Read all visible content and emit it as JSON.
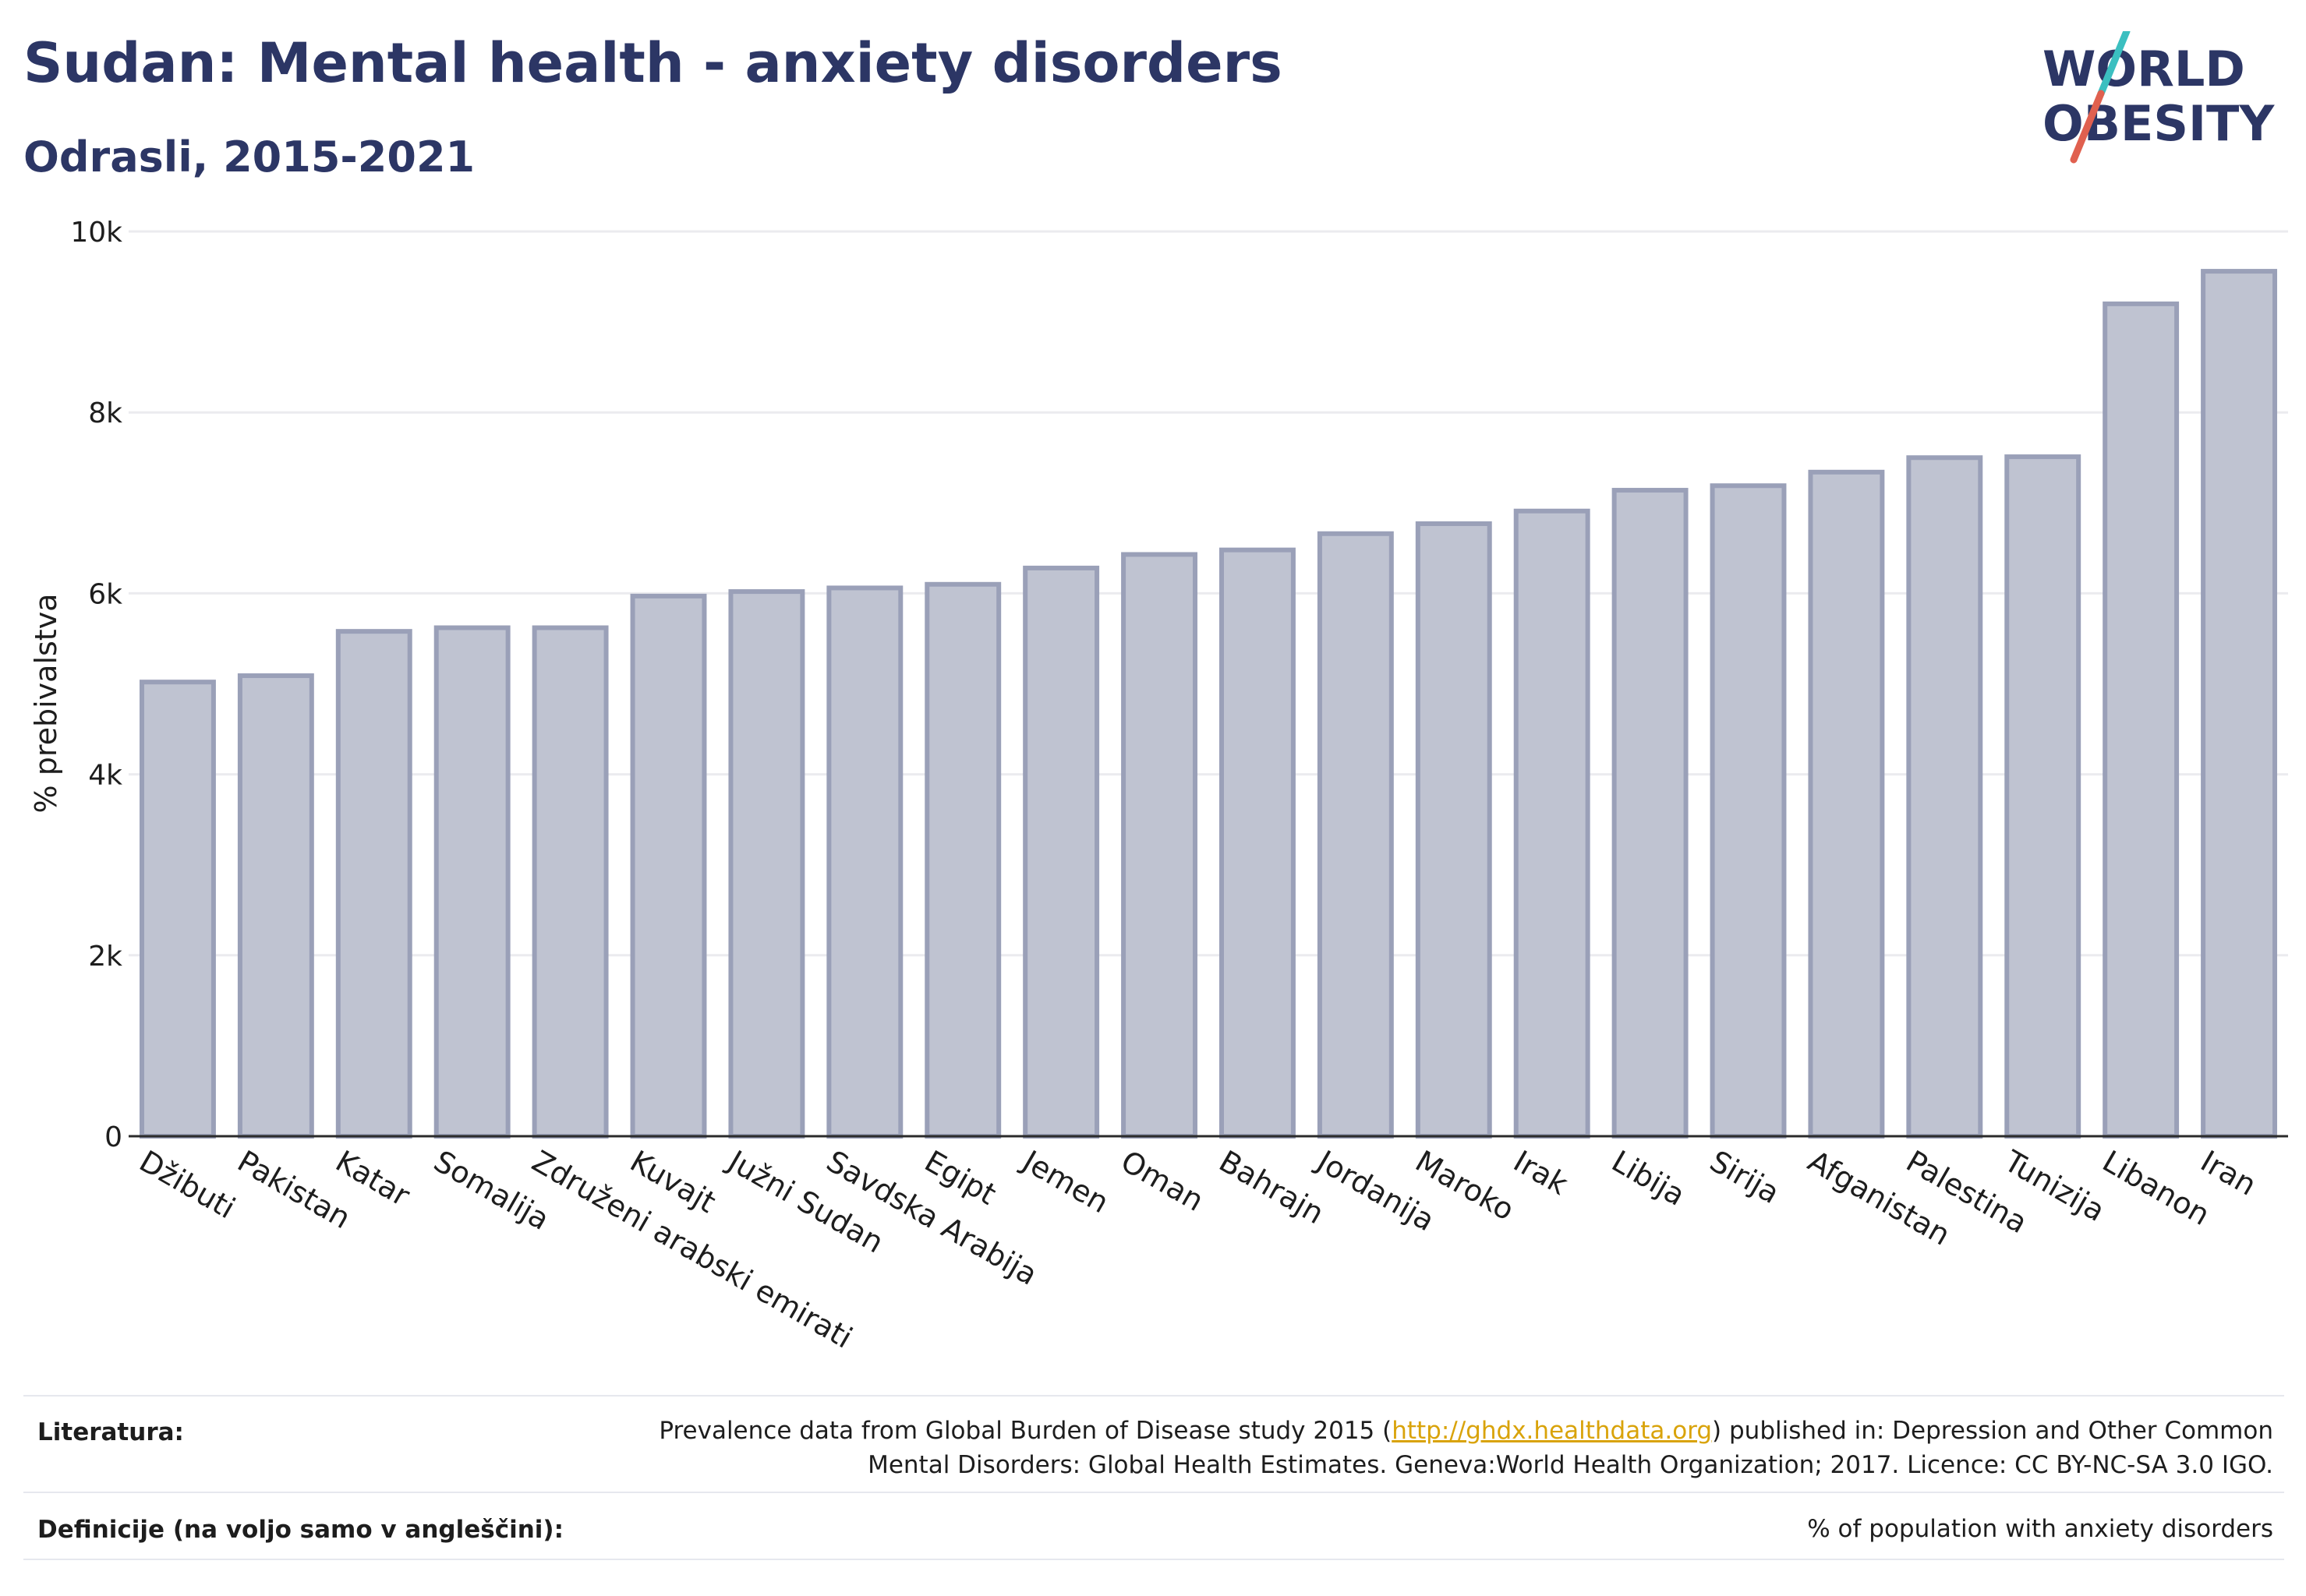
{
  "header": {
    "title": "Sudan: Mental health - anxiety disorders",
    "subtitle": "Odrasli, 2015-2021",
    "logo_line1": "WORLD",
    "logo_line2": "OBESITY"
  },
  "colors": {
    "bar_fill": "#bfc3d1",
    "bar_stroke": "#9aa0b8",
    "title": "#2c3665",
    "logo_teal": "#3bbfc0",
    "logo_red": "#e0604f",
    "link": "#d9a30a"
  },
  "chart_data": {
    "type": "bar",
    "categories": [
      "Džibuti",
      "Pakistan",
      "Katar",
      "Somalija",
      "Združeni arabski emirati",
      "Kuvajt",
      "Južni Sudan",
      "Savdska Arabija",
      "Egipt",
      "Jemen",
      "Oman",
      "Bahrajn",
      "Jordanija",
      "Maroko",
      "Irak",
      "Libija",
      "Sirija",
      "Afganistan",
      "Palestina",
      "Tunizija",
      "Libanon",
      "Iran"
    ],
    "values": [
      5020,
      5090,
      5580,
      5620,
      5620,
      5970,
      6020,
      6060,
      6100,
      6280,
      6430,
      6480,
      6660,
      6770,
      6910,
      7140,
      7190,
      7340,
      7500,
      7510,
      9200,
      9560
    ],
    "ylabel": "% prebivalstva",
    "ylim": [
      0,
      10000
    ],
    "yticks": [
      0,
      2000,
      4000,
      6000,
      8000,
      10000
    ],
    "ytick_labels": [
      "0",
      "2k",
      "4k",
      "6k",
      "8k",
      "10k"
    ],
    "grid": true
  },
  "footer": {
    "sources_label": "Literatura:",
    "sources_pre": "Prevalence data from Global Burden of Disease study 2015 (",
    "sources_link": "http://ghdx.healthdata.org",
    "sources_post": ") published in: Depression and Other Common",
    "sources_line2": "Mental Disorders: Global Health Estimates. Geneva:World Health Organization; 2017. Licence: CC BY-NC-SA 3.0 IGO.",
    "definitions_label": "Definicije (na voljo samo v angleščini):",
    "definitions_text": "% of population with anxiety disorders"
  }
}
